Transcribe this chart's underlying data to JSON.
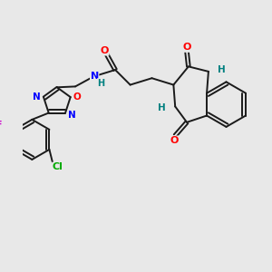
{
  "background_color": "#e8e8e8",
  "bond_color": "#1a1a1a",
  "atom_colors": {
    "O": "#ff0000",
    "N": "#0000ff",
    "H": "#008080",
    "F": "#cc00cc",
    "Cl": "#00aa00",
    "C": "#1a1a1a"
  },
  "figsize": [
    3.0,
    3.0
  ],
  "dpi": 100
}
